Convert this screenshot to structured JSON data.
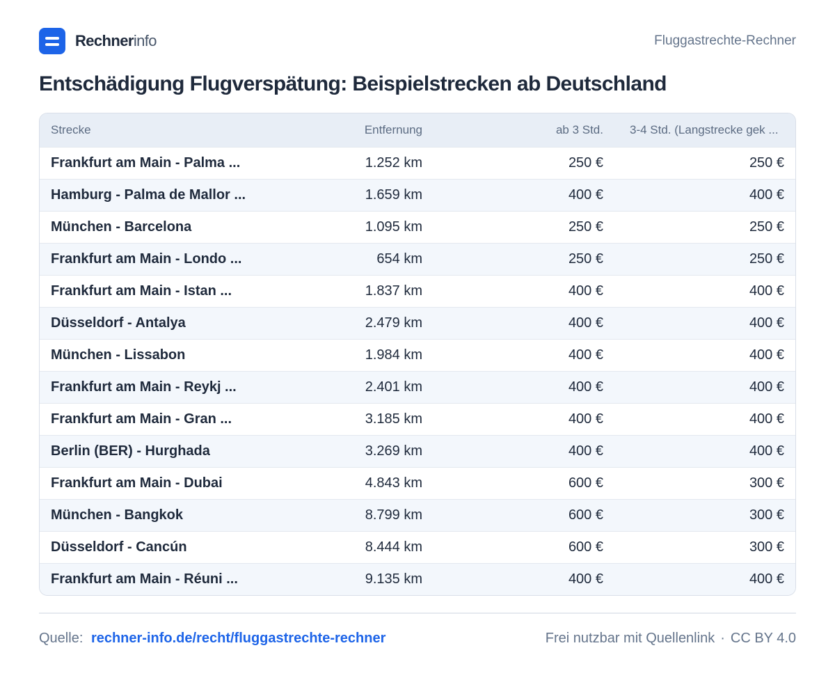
{
  "brand": {
    "name_bold": "Rechner",
    "name_light": "info"
  },
  "header": {
    "right_label": "Fluggastrechte-Rechner"
  },
  "title": "Entschädigung Flugverspätung: Beispielstrecken ab Deutschland",
  "table": {
    "headers": {
      "route": "Strecke",
      "distance": "Entfernung",
      "from3": "ab 3 Std.",
      "h34": "3-4 Std. (Langstrecke gek ..."
    },
    "rows": [
      {
        "route": "Frankfurt am Main - Palma ...",
        "distance": "1.252 km",
        "from3": "250 €",
        "h34": "250 €"
      },
      {
        "route": "Hamburg - Palma de Mallor ...",
        "distance": "1.659 km",
        "from3": "400 €",
        "h34": "400 €"
      },
      {
        "route": "München - Barcelona",
        "distance": "1.095 km",
        "from3": "250 €",
        "h34": "250 €"
      },
      {
        "route": "Frankfurt am Main - Londo ...",
        "distance": "654 km",
        "from3": "250 €",
        "h34": "250 €"
      },
      {
        "route": "Frankfurt am Main - Istan ...",
        "distance": "1.837 km",
        "from3": "400 €",
        "h34": "400 €"
      },
      {
        "route": "Düsseldorf - Antalya",
        "distance": "2.479 km",
        "from3": "400 €",
        "h34": "400 €"
      },
      {
        "route": "München - Lissabon",
        "distance": "1.984 km",
        "from3": "400 €",
        "h34": "400 €"
      },
      {
        "route": "Frankfurt am Main - Reykj ...",
        "distance": "2.401 km",
        "from3": "400 €",
        "h34": "400 €"
      },
      {
        "route": "Frankfurt am Main - Gran ...",
        "distance": "3.185 km",
        "from3": "400 €",
        "h34": "400 €"
      },
      {
        "route": "Berlin (BER) - Hurghada",
        "distance": "3.269 km",
        "from3": "400 €",
        "h34": "400 €"
      },
      {
        "route": "Frankfurt am Main - Dubai",
        "distance": "4.843 km",
        "from3": "600 €",
        "h34": "300 €"
      },
      {
        "route": "München - Bangkok",
        "distance": "8.799 km",
        "from3": "600 €",
        "h34": "300 €"
      },
      {
        "route": "Düsseldorf - Cancún",
        "distance": "8.444 km",
        "from3": "600 €",
        "h34": "300 €"
      },
      {
        "route": "Frankfurt am Main - Réuni ...",
        "distance": "9.135 km",
        "from3": "400 €",
        "h34": "400 €"
      }
    ]
  },
  "footer": {
    "source_label": "Quelle:",
    "source_link": "rechner-info.de/recht/fluggastrechte-rechner",
    "license_note": "Frei nutzbar mit Quellenlink",
    "separator": "·",
    "license": "CC BY 4.0"
  },
  "colors": {
    "accent": "#1d64e8",
    "header_bg": "#e8eef6",
    "stripe_bg": "#f3f7fc",
    "text": "#1e293b",
    "muted": "#64748b"
  }
}
